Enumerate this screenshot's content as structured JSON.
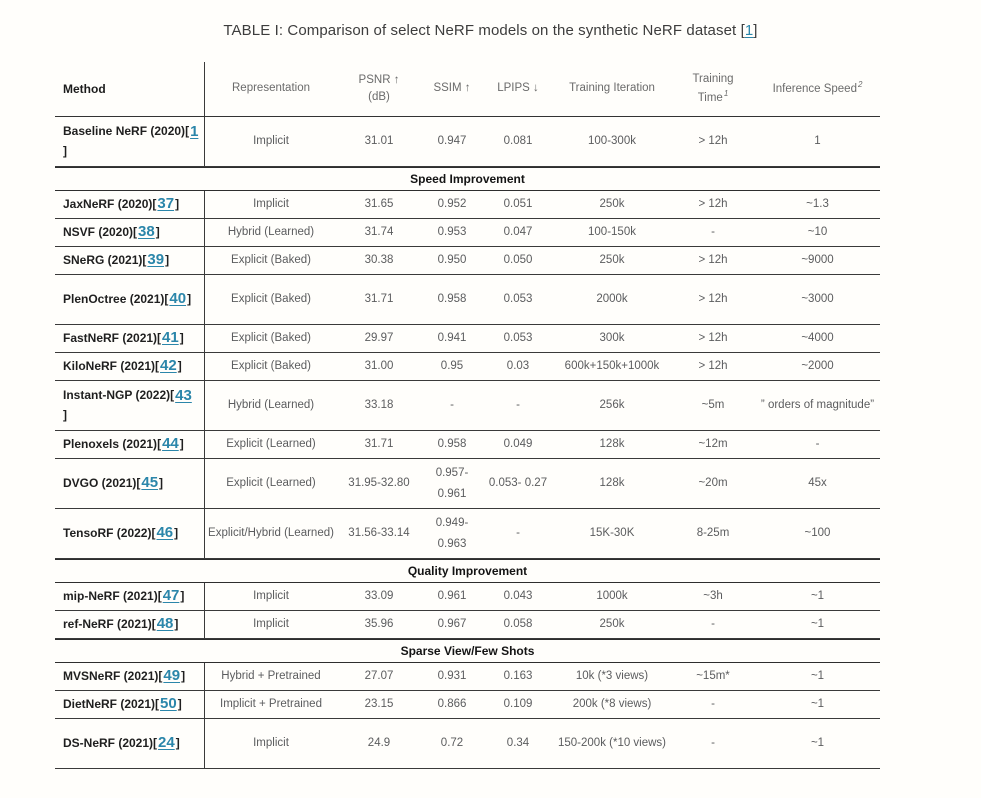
{
  "title": {
    "prefix": "TABLE I: Comparison of select NeRF models on the synthetic NeRF dataset ",
    "open_bracket": "[",
    "citation": "1",
    "close_bracket": "]"
  },
  "table": {
    "header": {
      "method": "Method",
      "representation": "Representation",
      "psnr": "PSNR ↑",
      "psnr_unit": "(dB)",
      "ssim": "SSIM ↑",
      "lpips": "LPIPS ↓",
      "training_iteration": "Training Iteration",
      "training_time_line1": "Training",
      "training_time_line2": "Time",
      "training_time_sup": "1",
      "inference_speed": "Inference Speed",
      "inference_speed_sup": "2"
    },
    "rows": [
      {
        "type": "data",
        "method": "Baseline NeRF (2020)",
        "cite": "1",
        "wrap": true,
        "tall": true,
        "cells": [
          "Implicit",
          "31.01",
          "0.947",
          "0.081",
          "100-300k",
          "> 12h",
          "1"
        ]
      },
      {
        "type": "section",
        "label": "Speed Improvement"
      },
      {
        "type": "data",
        "method": "JaxNeRF (2020)",
        "cite": "37",
        "wrap": false,
        "tall": false,
        "cells": [
          "Implicit",
          "31.65",
          "0.952",
          "0.051",
          "250k",
          "> 12h",
          "~1.3"
        ]
      },
      {
        "type": "data",
        "method": "NSVF (2020) ",
        "cite": "38",
        "wrap": false,
        "tall": false,
        "cells": [
          "Hybrid (Learned)",
          "31.74",
          "0.953",
          "0.047",
          "100-150k",
          "-",
          "~10"
        ]
      },
      {
        "type": "data",
        "method": "SNeRG (2021) ",
        "cite": "39",
        "wrap": false,
        "tall": false,
        "cells": [
          "Explicit (Baked)",
          "30.38",
          "0.950",
          "0.050",
          "250k",
          "> 12h",
          "~9000"
        ]
      },
      {
        "type": "data",
        "method": "PlenOctree (2021) ",
        "cite": "40",
        "wrap": false,
        "tall": true,
        "cells": [
          "Explicit (Baked)",
          "31.71",
          "0.958",
          "0.053",
          "2000k",
          "> 12h",
          "~3000"
        ]
      },
      {
        "type": "data",
        "method": "FastNeRF (2021) ",
        "cite": "41",
        "wrap": false,
        "tall": false,
        "cells": [
          "Explicit (Baked)",
          "29.97",
          "0.941",
          "0.053",
          "300k",
          "> 12h",
          "~4000"
        ]
      },
      {
        "type": "data",
        "method": "KiloNeRF (2021) ",
        "cite": "42",
        "wrap": false,
        "tall": false,
        "cells": [
          "Explicit (Baked)",
          "31.00",
          "0.95",
          "0.03",
          "600k+150k+1000k",
          "> 12h",
          "~2000"
        ]
      },
      {
        "type": "data",
        "method": "Instant-NGP (2022) ",
        "cite": "43",
        "wrap": true,
        "tall": true,
        "cells": [
          "Hybrid (Learned)",
          "33.18",
          "-",
          "-",
          "256k",
          "~5m",
          "” orders of magnitude”"
        ]
      },
      {
        "type": "data",
        "method": "Plenoxels (2021) ",
        "cite": "44",
        "wrap": false,
        "tall": false,
        "cells": [
          "Explicit (Learned)",
          "31.71",
          "0.958",
          "0.049",
          "128k",
          "~12m",
          "-"
        ]
      },
      {
        "type": "data",
        "method": "DVGO (2021) ",
        "cite": "45",
        "wrap": false,
        "tall": true,
        "cells": [
          "Explicit (Learned)",
          "31.95-32.80",
          "0.957- 0.961",
          "0.053- 0.27",
          "128k",
          "~20m",
          "45x"
        ]
      },
      {
        "type": "data",
        "method": "TensoRF (2022) ",
        "cite": "46",
        "wrap": false,
        "tall": true,
        "cells": [
          "Explicit/Hybrid (Learned)",
          "31.56-33.14",
          "0.949- 0.963",
          "-",
          "15K-30K",
          "8-25m",
          "~100"
        ]
      },
      {
        "type": "section",
        "label": "Quality Improvement"
      },
      {
        "type": "data",
        "method": "mip-NeRF (2021)",
        "cite": "47",
        "wrap": false,
        "tall": false,
        "cells": [
          "Implicit",
          "33.09",
          "0.961",
          "0.043",
          "1000k",
          "~3h",
          "~1"
        ]
      },
      {
        "type": "data",
        "method": "ref-NeRF (2021)",
        "cite": "48",
        "wrap": false,
        "tall": false,
        "cells": [
          "Implicit",
          "35.96",
          "0.967",
          "0.058",
          "250k",
          "-",
          "~1"
        ]
      },
      {
        "type": "section",
        "label": "Sparse View/Few Shots"
      },
      {
        "type": "data",
        "method": "MVSNeRF (2021)",
        "cite": "49",
        "wrap": false,
        "tall": false,
        "cells": [
          "Hybrid + Pretrained",
          "27.07",
          "0.931",
          "0.163",
          "10k (*3 views)",
          "~15m*",
          "~1"
        ]
      },
      {
        "type": "data",
        "method": "DietNeRF (2021)",
        "cite": "50",
        "wrap": false,
        "tall": false,
        "cells": [
          "Implicit + Pretrained",
          "23.15",
          "0.866",
          "0.109",
          "200k (*8 views)",
          "-",
          "~1"
        ]
      },
      {
        "type": "data",
        "method": "DS-NeRF (2021)",
        "cite": "24",
        "wrap": false,
        "tall": true,
        "cells": [
          "Implicit",
          "24.9",
          "0.72",
          "0.34",
          "150-200k (*10 views)",
          "-",
          "~1"
        ]
      }
    ],
    "column_keys": [
      "representation",
      "psnr",
      "ssim",
      "lpips",
      "training-iteration",
      "training-time",
      "inference-speed"
    ]
  },
  "colors": {
    "link_teal": "#2b86aa",
    "border_dark": "#3a3a3a",
    "text_gray": "#5b5c5e",
    "text_dark": "#1f1f1f"
  }
}
